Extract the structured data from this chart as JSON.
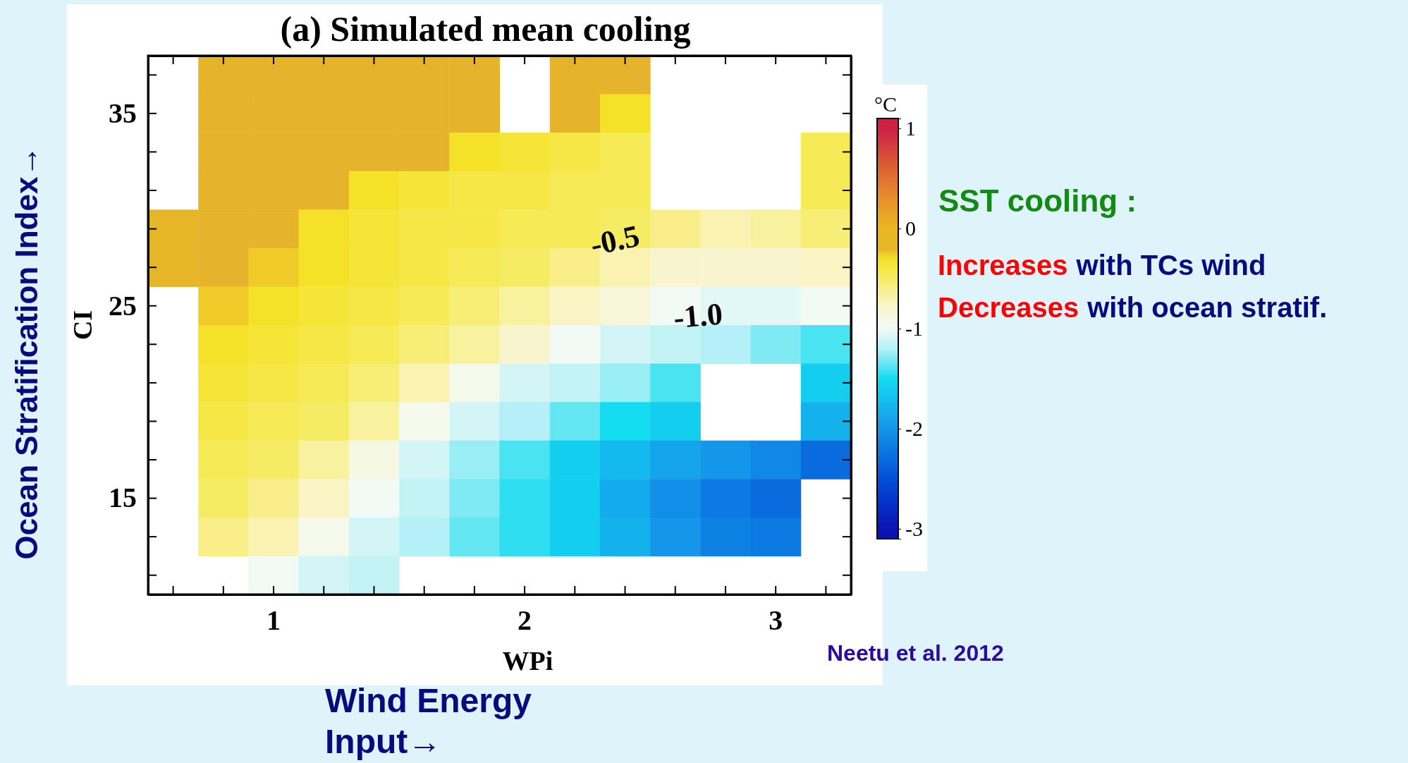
{
  "chart_data": {
    "type": "heatmap",
    "title": "(a) Simulated mean cooling",
    "xlabel": "WPi",
    "ylabel": "CI",
    "clabel": "°C",
    "clim": [
      -3.1,
      1.1
    ],
    "cticks": [
      -3,
      -2,
      -1,
      0,
      1
    ],
    "categories": [
      null,
      null,
      "1",
      null,
      null,
      null,
      null,
      "2",
      null,
      null,
      null,
      null,
      "3",
      null
    ],
    "y_categories": [
      null,
      "35",
      null,
      null,
      null,
      null,
      "25",
      null,
      null,
      null,
      null,
      "15",
      null,
      null
    ],
    "cells": [
      [
        null,
        -0.2,
        -0.2,
        -0.2,
        -0.2,
        -0.2,
        -0.2,
        null,
        -0.2,
        -0.2,
        null,
        null,
        null,
        null
      ],
      [
        null,
        -0.2,
        -0.2,
        -0.2,
        -0.2,
        -0.2,
        -0.2,
        null,
        -0.2,
        -0.3,
        null,
        null,
        null,
        null
      ],
      [
        null,
        -0.2,
        -0.2,
        -0.2,
        -0.2,
        -0.2,
        -0.3,
        -0.35,
        -0.4,
        -0.45,
        null,
        null,
        null,
        -0.45
      ],
      [
        null,
        -0.2,
        -0.2,
        -0.2,
        -0.3,
        -0.35,
        -0.4,
        -0.4,
        -0.45,
        -0.45,
        null,
        null,
        null,
        -0.45
      ],
      [
        -0.15,
        -0.2,
        -0.2,
        -0.3,
        -0.35,
        -0.4,
        -0.4,
        -0.45,
        -0.45,
        -0.5,
        -0.6,
        -0.7,
        -0.65,
        -0.55
      ],
      [
        -0.15,
        -0.2,
        -0.25,
        -0.3,
        -0.35,
        -0.4,
        -0.45,
        -0.5,
        -0.6,
        -0.7,
        -0.8,
        -0.8,
        -0.8,
        -0.75
      ],
      [
        null,
        -0.25,
        -0.3,
        -0.35,
        -0.4,
        -0.45,
        -0.55,
        -0.65,
        -0.75,
        -0.85,
        -1.0,
        -1.05,
        -1.05,
        -1.0
      ],
      [
        null,
        -0.3,
        -0.35,
        -0.4,
        -0.45,
        -0.55,
        -0.65,
        -0.8,
        -1.0,
        -1.1,
        -1.15,
        -1.2,
        -1.3,
        -1.4
      ],
      [
        null,
        -0.35,
        -0.4,
        -0.45,
        -0.55,
        -0.7,
        -0.95,
        -1.1,
        -1.15,
        -1.25,
        -1.4,
        null,
        null,
        -1.6
      ],
      [
        null,
        -0.4,
        -0.45,
        -0.5,
        -0.65,
        -0.95,
        -1.1,
        -1.2,
        -1.35,
        -1.5,
        -1.6,
        null,
        null,
        -1.8
      ],
      [
        null,
        -0.45,
        -0.5,
        -0.65,
        -0.9,
        -1.1,
        -1.25,
        -1.4,
        -1.6,
        -1.75,
        -1.9,
        -2.0,
        -2.1,
        -2.3
      ],
      [
        null,
        -0.5,
        -0.6,
        -0.75,
        -1.0,
        -1.15,
        -1.3,
        -1.45,
        -1.6,
        -1.85,
        -2.05,
        -2.2,
        -2.3,
        null
      ],
      [
        null,
        -0.6,
        -0.7,
        -0.95,
        -1.1,
        -1.2,
        -1.35,
        -1.45,
        -1.6,
        -1.8,
        -2.0,
        -2.15,
        -2.2,
        null
      ],
      [
        null,
        null,
        -1.0,
        -1.1,
        -1.15,
        null,
        null,
        null,
        null,
        null,
        null,
        null,
        null,
        null
      ]
    ],
    "annotations": [
      "-0.5",
      "-1.0",
      "SST cooling :",
      "Increases",
      "with TCs wind",
      "Decreases",
      "with ocean stratif.",
      "Neetu et al. 2012",
      "Ocean Stratification Index→",
      "Wind Energy Input→"
    ]
  }
}
